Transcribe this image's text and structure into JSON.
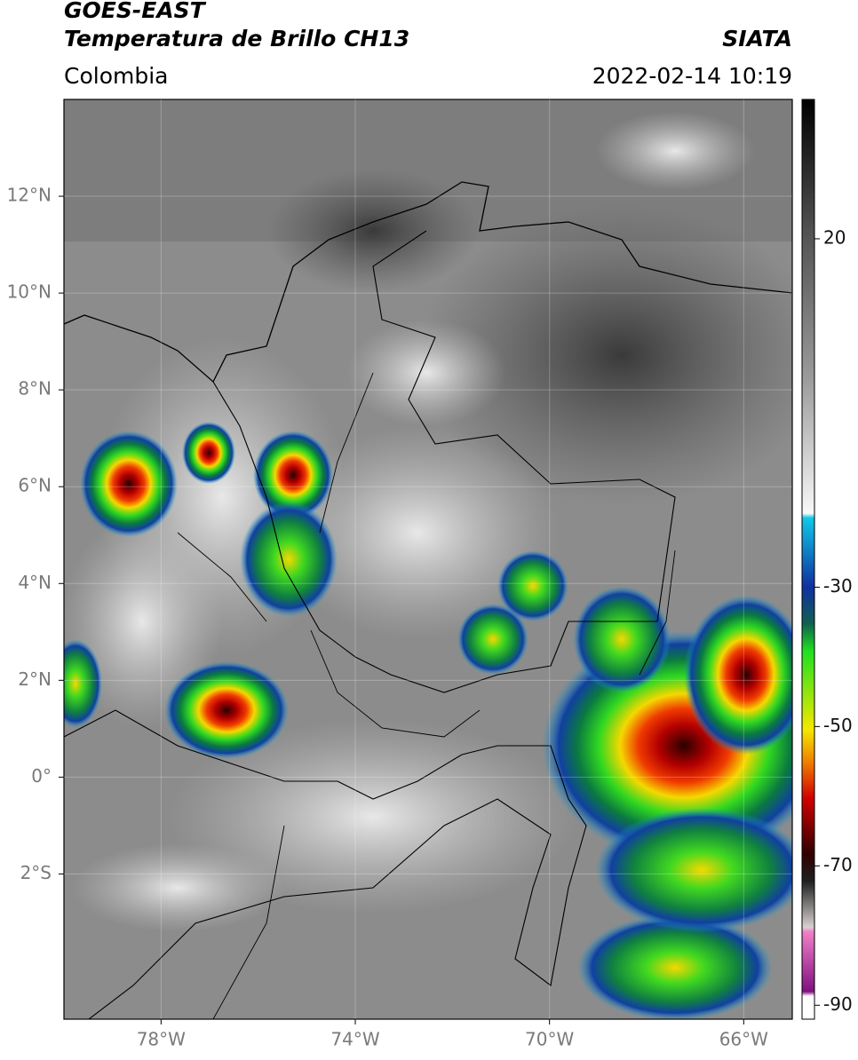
{
  "header": {
    "title_line1": "GOES-EAST",
    "title_line2": "Temperatura de Brillo CH13",
    "region": "Colombia",
    "source": "SIATA",
    "datetime": "2022-02-14 10:19"
  },
  "map": {
    "xlim": [
      -80,
      -65
    ],
    "ylim": [
      -5,
      14
    ],
    "xticks": [
      {
        "value": -78,
        "label": "78°W"
      },
      {
        "value": -74,
        "label": "74°W"
      },
      {
        "value": -70,
        "label": "70°W"
      },
      {
        "value": -66,
        "label": "66°W"
      }
    ],
    "yticks": [
      {
        "value": 12,
        "label": "12°N"
      },
      {
        "value": 10,
        "label": "10°N"
      },
      {
        "value": 8,
        "label": "8°N"
      },
      {
        "value": 6,
        "label": "6°N"
      },
      {
        "value": 4,
        "label": "4°N"
      },
      {
        "value": 2,
        "label": "2°N"
      },
      {
        "value": 0,
        "label": "0°"
      },
      {
        "value": -2,
        "label": "2°S"
      }
    ]
  },
  "colorbar": {
    "lim": [
      -92,
      40
    ],
    "ticks": [
      20,
      -30,
      -50,
      -70,
      -90
    ]
  }
}
